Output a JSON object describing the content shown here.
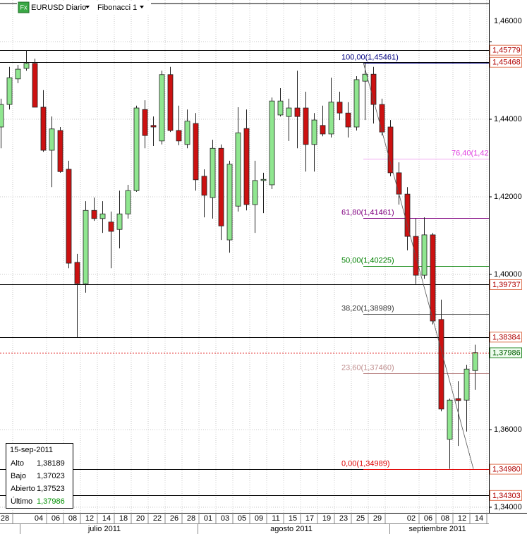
{
  "toolbar": {
    "icon": "Fx",
    "symbol": "EURUSD Diario",
    "study": "Fibonacci 1"
  },
  "chart_data": {
    "type": "candlestick",
    "categories": [
      "28",
      null,
      null,
      null,
      "04",
      null,
      "06",
      null,
      "08",
      null,
      "12",
      null,
      "14",
      null,
      "18",
      null,
      "20",
      null,
      "22",
      null,
      "26",
      null,
      "28",
      null,
      "01",
      null,
      "03",
      null,
      "05",
      null,
      "09",
      null,
      "11",
      null,
      "15",
      null,
      "17",
      null,
      "19",
      null,
      "23",
      null,
      "25",
      null,
      "29",
      null,
      null,
      null,
      "02",
      null,
      "06",
      null,
      "08",
      null,
      "12",
      null,
      "14"
    ],
    "months": [
      "julio 2011",
      "agosto 2011",
      "septiembre 2011"
    ],
    "open": [
      1.438,
      1.4438,
      1.4504,
      1.4531,
      1.4544,
      1.4431,
      1.432,
      1.4371,
      1.4271,
      1.4031,
      1.3976,
      1.4165,
      1.4144,
      1.4135,
      1.4116,
      1.4156,
      1.4216,
      1.4425,
      1.4384,
      1.4344,
      1.4515,
      1.4371,
      1.4335,
      1.4389,
      1.4253,
      1.4198,
      1.4325,
      1.4089,
      1.4176,
      1.4376,
      1.418,
      1.4242,
      1.4231,
      1.4411,
      1.4407,
      1.4429,
      1.4429,
      1.4335,
      1.4384,
      1.4362,
      1.4444,
      1.4416,
      1.438,
      1.4498,
      1.4516,
      1.4438,
      1.438,
      1.4262,
      1.4207,
      1.4098,
      1.3998,
      1.4102,
      1.3884,
      1.3575,
      1.368,
      1.3676,
      1.37523
    ],
    "high": [
      1.4453,
      1.4535,
      1.454,
      1.4578,
      1.4556,
      1.4475,
      1.4407,
      1.438,
      1.4293,
      1.4053,
      1.4189,
      1.4198,
      1.4189,
      1.4162,
      1.4216,
      1.4231,
      1.4435,
      1.4449,
      1.4407,
      1.4525,
      1.4535,
      1.4435,
      1.4425,
      1.4416,
      1.4271,
      1.4347,
      1.4335,
      1.4293,
      1.4431,
      1.4425,
      1.4293,
      1.4262,
      1.4456,
      1.448,
      1.4453,
      1.4525,
      1.4471,
      1.4416,
      1.4435,
      1.4507,
      1.4471,
      1.4444,
      1.4511,
      1.45461,
      1.4535,
      1.4453,
      1.4398,
      1.4289,
      1.4225,
      1.4144,
      1.4147,
      1.4107,
      1.3935,
      1.368,
      1.3725,
      1.3767,
      1.38189
    ],
    "low": [
      1.4325,
      1.4425,
      1.4493,
      1.4525,
      1.4431,
      1.4316,
      1.4225,
      1.4262,
      1.4016,
      1.3838,
      1.3953,
      1.4138,
      1.4107,
      1.4016,
      1.4067,
      1.4144,
      1.4213,
      1.4325,
      1.4331,
      1.4335,
      1.4367,
      1.4333,
      1.4325,
      1.4216,
      1.4147,
      1.4144,
      1.4089,
      1.4056,
      1.4162,
      1.4165,
      1.4107,
      1.4158,
      1.422,
      1.4407,
      1.4344,
      1.4325,
      1.4265,
      1.4265,
      1.4356,
      1.4353,
      1.4398,
      1.4353,
      1.4371,
      1.4398,
      1.4389,
      1.4358,
      1.4253,
      1.418,
      1.4062,
      1.3975,
      1.3989,
      1.3871,
      1.3647,
      1.34989,
      1.3558,
      1.3595,
      1.37023
    ],
    "close": [
      1.4438,
      1.4507,
      1.4529,
      1.4544,
      1.4431,
      1.432,
      1.4375,
      1.4265,
      1.4029,
      1.3976,
      1.4165,
      1.4144,
      1.4156,
      1.4111,
      1.4156,
      1.4216,
      1.4429,
      1.4358,
      1.438,
      1.4515,
      1.4371,
      1.4344,
      1.4395,
      1.4244,
      1.4204,
      1.4325,
      1.4125,
      1.4284,
      1.4365,
      1.418,
      1.4242,
      1.4245,
      1.4447,
      1.4447,
      1.4429,
      1.4407,
      1.4335,
      1.4398,
      1.4362,
      1.4444,
      1.4416,
      1.438,
      1.4502,
      1.4516,
      1.4438,
      1.4367,
      1.4262,
      1.4207,
      1.4098,
      1.3998,
      1.4102,
      1.388,
      1.3653,
      1.3676,
      1.3675,
      1.3756,
      1.37986
    ],
    "up_color": "#8fe68f",
    "down_color": "#cc1111",
    "ylim": [
      1.33855,
      1.47073
    ],
    "yticks": [
      {
        "value": 1.46,
        "label": "1,46000"
      },
      {
        "value": 1.44,
        "label": "1,44000"
      },
      {
        "value": 1.42,
        "label": "1,42000"
      },
      {
        "value": 1.4,
        "label": "1,40000"
      },
      {
        "value": 1.36,
        "label": "1,36000"
      },
      {
        "value": 1.34,
        "label": "1,34000"
      }
    ],
    "grid": true,
    "levels": [
      {
        "value": 1.45779,
        "label": "1,45779"
      },
      {
        "value": 1.45468,
        "label": "1,45468"
      },
      {
        "value": 1.39737,
        "label": "1,39737"
      },
      {
        "value": 1.38384,
        "label": "1,38384"
      },
      {
        "value": 1.3498,
        "label": "1,34980"
      },
      {
        "value": 1.34303,
        "label": "1,34303"
      }
    ],
    "last": {
      "value": 1.37986,
      "label": "1,37986"
    },
    "fibonacci": [
      {
        "value": 1.45461,
        "label": "100,00(1,45461)",
        "color": "#000080"
      },
      {
        "value": 1.4299,
        "label": "76,40(1,42",
        "color": "#e040e0"
      },
      {
        "value": 1.41461,
        "label": "61,80(1,41461)",
        "color": "#800080"
      },
      {
        "value": 1.40225,
        "label": "50,00(1,40225)",
        "color": "#008000"
      },
      {
        "value": 1.38989,
        "label": "38,20(1,38989)",
        "color": "#404040"
      },
      {
        "value": 1.3746,
        "label": "23,60(1,37460)",
        "color": "#c09090"
      },
      {
        "value": 1.34989,
        "label": "0,00(1,34989)",
        "color": "#e00000"
      }
    ]
  },
  "info": {
    "date": "15-sep-2011",
    "rows": [
      {
        "label": "Alto",
        "value": "1,38189"
      },
      {
        "label": "Bajo",
        "value": "1,37023"
      },
      {
        "label": "Abierto",
        "value": "1,37523"
      },
      {
        "label": "Último",
        "value": "1,37986"
      }
    ]
  }
}
